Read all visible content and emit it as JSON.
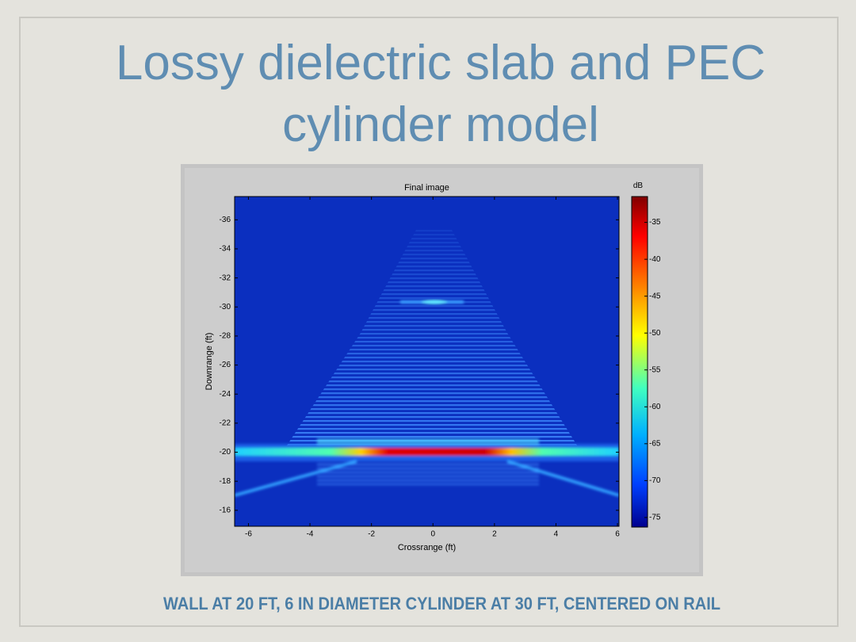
{
  "slide": {
    "title_lines": [
      "Lossy dielectric slab and PEC",
      "cylinder model"
    ],
    "caption": "WALL AT 20 FT, 6 IN DIAMETER CYLINDER AT 30 FT, CENTERED ON RAIL"
  },
  "figure": {
    "title": "Final image",
    "xlabel": "Crossrange (ft)",
    "ylabel": "Downrange (ft)",
    "xlim": [
      -6.45,
      6.05
    ],
    "xticks": [
      -6,
      -4,
      -2,
      0,
      2,
      4,
      6
    ],
    "ylim": [
      -37.6,
      -14.9
    ],
    "yticks": [
      -36,
      -34,
      -32,
      -30,
      -28,
      -26,
      -24,
      -22,
      -20,
      -18,
      -16
    ],
    "colorbar": {
      "label": "dB",
      "lim": [
        -31.5,
        -76.3
      ],
      "ticks": [
        -35,
        -40,
        -45,
        -50,
        -55,
        -60,
        -65,
        -70,
        -75
      ]
    }
  }
}
